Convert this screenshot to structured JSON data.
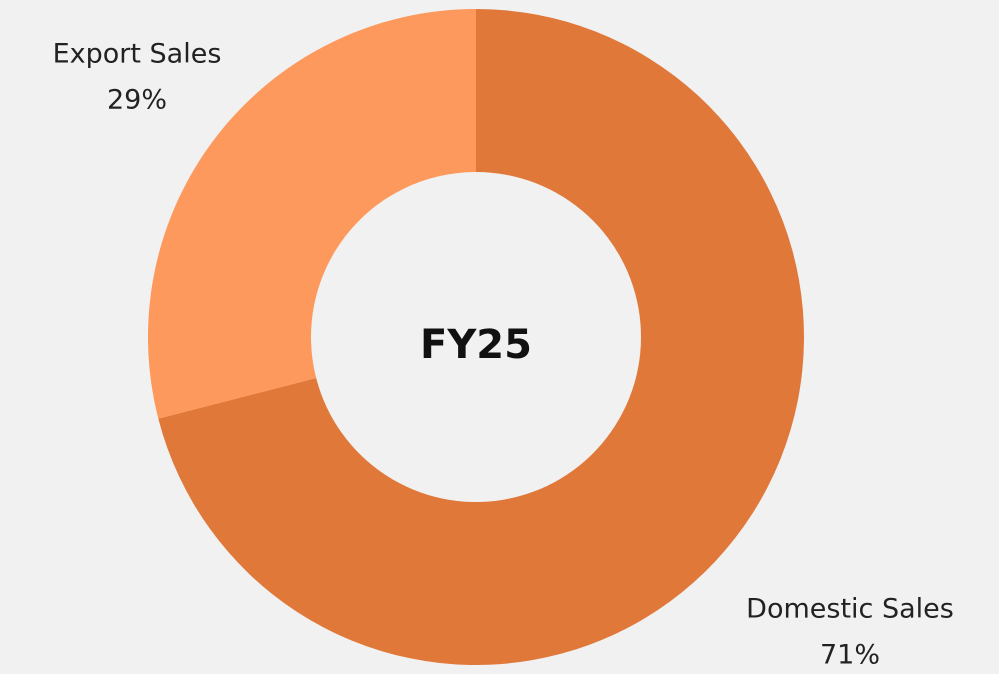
{
  "chart_data": {
    "type": "donut",
    "center_label": "FY25",
    "categories": [
      "Domestic Sales",
      "Export Sales"
    ],
    "values": [
      71,
      29
    ],
    "value_labels": [
      "71%",
      "29%"
    ],
    "colors": [
      "#e0783a",
      "#fd995c"
    ]
  }
}
